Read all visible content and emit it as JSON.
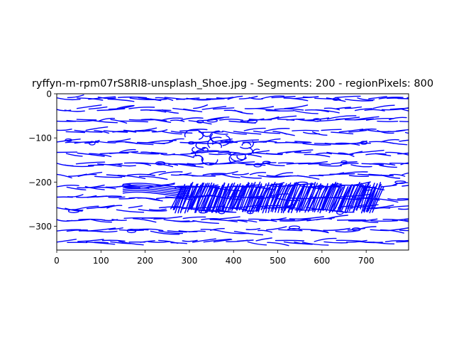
{
  "chart_data": {
    "type": "line",
    "title": "ryffyn-m-rpm07rS8RI8-unsplash_Shoe.jpg - Segments: 200 - regionPixels: 800",
    "xlabel": "",
    "ylabel": "",
    "xlim": [
      0,
      796
    ],
    "ylim": [
      -354,
      0
    ],
    "xticks": [
      0,
      100,
      200,
      300,
      400,
      500,
      600,
      700
    ],
    "yticks": [
      0,
      -100,
      -200,
      -300
    ],
    "grid": false,
    "legend": "none",
    "line_color": "#0000ff",
    "description_regions": {
      "background_rows_y": [
        -10,
        -35,
        -60,
        -85,
        -110,
        -135,
        -160,
        -185,
        -210,
        -235,
        -260,
        -285,
        -310,
        -335
      ],
      "shoe_band": {
        "x": [
          150,
          730
        ],
        "y": [
          -270,
          -200
        ]
      },
      "shoe_upper": {
        "x": [
          300,
          460
        ],
        "y": [
          -160,
          -80
        ]
      }
    }
  }
}
